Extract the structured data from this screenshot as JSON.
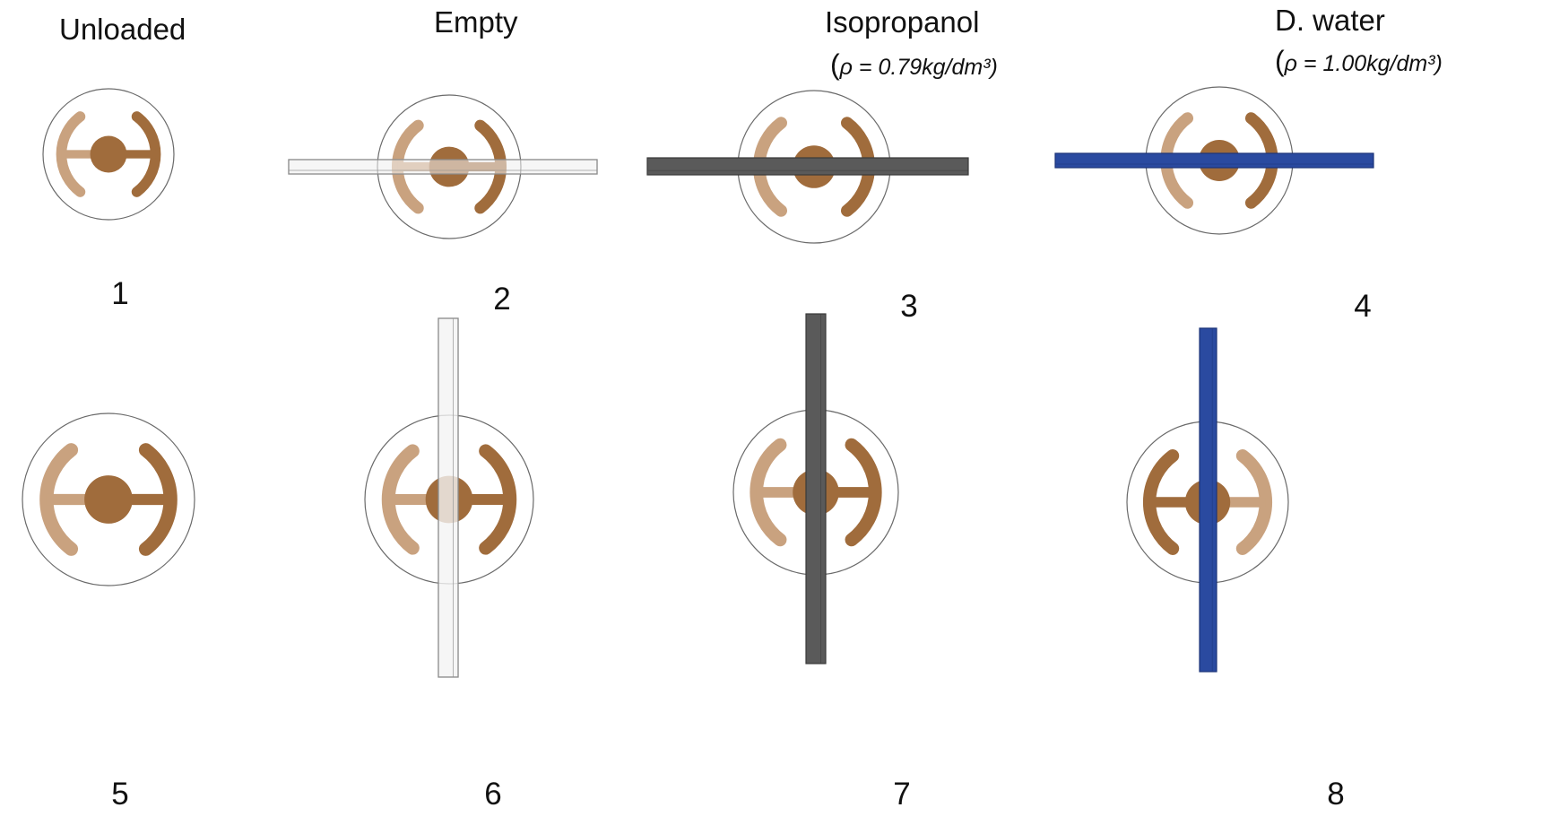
{
  "headers": [
    {
      "label": "Unloaded"
    },
    {
      "label": "Empty"
    },
    {
      "label": "Isopropanol",
      "density": "ρ = 0.79kg/dm³"
    },
    {
      "label": "D. water",
      "density": "ρ = 1.00kg/dm³"
    }
  ],
  "panel_numbers": [
    "1",
    "2",
    "3",
    "4",
    "5",
    "6",
    "7",
    "8"
  ],
  "panels": [
    {
      "id": "1",
      "sample": "none",
      "orientation": "horizontal",
      "loaded_side": "right"
    },
    {
      "id": "2",
      "sample": "empty",
      "orientation": "horizontal",
      "loaded_side": "right"
    },
    {
      "id": "3",
      "sample": "isopropanol",
      "orientation": "horizontal",
      "loaded_side": "right"
    },
    {
      "id": "4",
      "sample": "water",
      "orientation": "horizontal",
      "loaded_side": "right"
    },
    {
      "id": "5",
      "sample": "none",
      "orientation": "vertical",
      "loaded_side": "right"
    },
    {
      "id": "6",
      "sample": "empty",
      "orientation": "vertical",
      "loaded_side": "right"
    },
    {
      "id": "7",
      "sample": "isopropanol",
      "orientation": "vertical",
      "loaded_side": "right"
    },
    {
      "id": "8",
      "sample": "water",
      "orientation": "vertical",
      "loaded_side": "left"
    }
  ],
  "colors": {
    "resonator_dark": "#a06c3c",
    "resonator_light": "#c9a27f",
    "empty_tube_fill": "#f4f4f4",
    "empty_tube_stroke": "#8a8a8a",
    "isopropanol_tube": "#5a5a5a",
    "water_tube": "#2a4aa0",
    "ring": "#6a6a6a"
  }
}
